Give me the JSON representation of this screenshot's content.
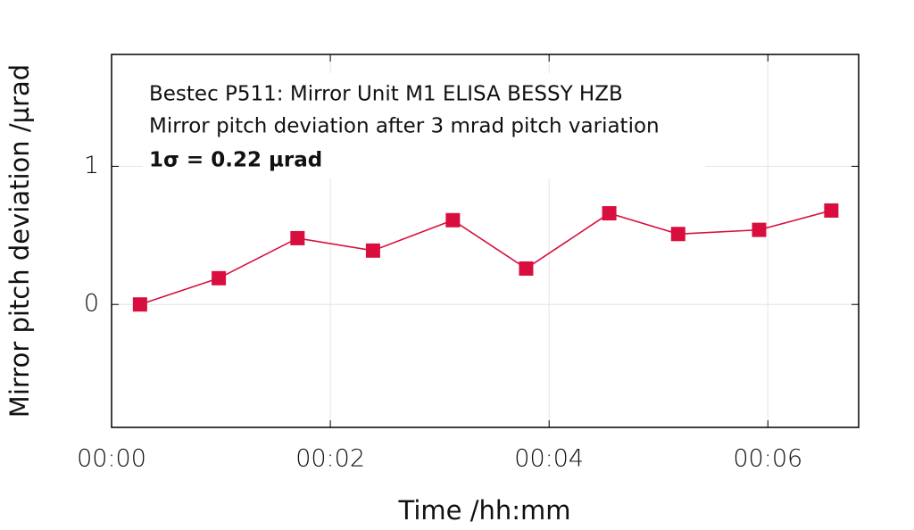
{
  "chart_data": {
    "type": "line",
    "annotations": [
      "Bestec P511: Mirror Unit M1 ELISA BESSY HZB",
      "Mirror pitch deviation after 3 mrad pitch variation",
      "1σ = 0.22 µrad"
    ],
    "x_label": "Time /hh:mm",
    "y_label": "Mirror pitch deviation /µrad",
    "x": [
      0.26,
      0.98,
      1.7,
      2.39,
      3.12,
      3.79,
      4.55,
      5.18,
      5.92,
      6.58
    ],
    "series": [
      {
        "color": "#d80f3e",
        "values": [
          0,
          0.19,
          0.48,
          0.39,
          0.61,
          0.26,
          0.66,
          0.51,
          0.54,
          0.68
        ]
      }
    ],
    "xlim": [
      0,
      6.83
    ],
    "ylim": [
      -0.89,
      1.81
    ],
    "xticks": [
      {
        "value": 0,
        "label": "00:00"
      },
      {
        "value": 2,
        "label": "00:02"
      },
      {
        "value": 4,
        "label": "00:04"
      },
      {
        "value": 6,
        "label": "00:06"
      }
    ],
    "yticks": [
      0,
      1
    ],
    "grid": true
  }
}
